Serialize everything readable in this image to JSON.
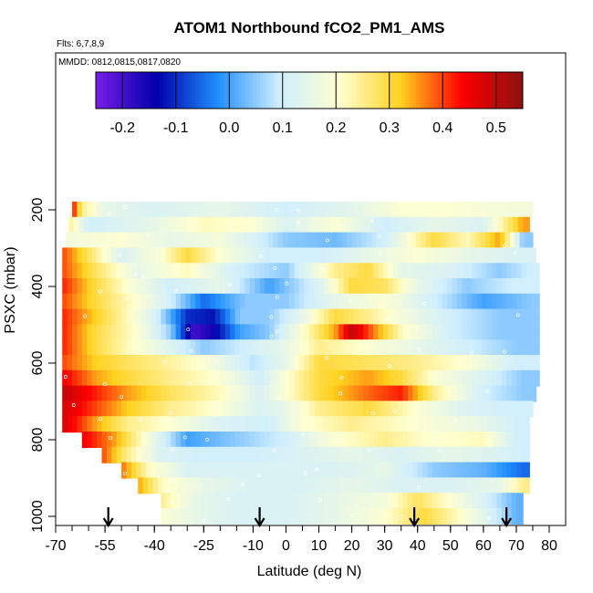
{
  "chart_data": {
    "type": "heatmap",
    "title": "ATOM1 Northbound fCO2_PM1_AMS",
    "subtitle_flights": "Flts: 6,7,8,9",
    "subtitle_dates": "MMDD: 0812,0815,0817,0820",
    "xlabel": "Latitude (deg N)",
    "ylabel": "PSXC (mbar)",
    "xlim": [
      -70,
      85
    ],
    "ylim": [
      1000,
      0
    ],
    "x_ticks": [
      "-70",
      "-55",
      "-40",
      "-25",
      "-10",
      "0",
      "10",
      "20",
      "30",
      "40",
      "50",
      "60",
      "70",
      "80"
    ],
    "x_tick_values": [
      -70,
      -55,
      -40,
      -25,
      -10,
      0,
      10,
      20,
      30,
      40,
      50,
      60,
      70,
      80
    ],
    "y_ticks": [
      "200",
      "400",
      "600",
      "800",
      "1000"
    ],
    "y_tick_values": [
      200,
      400,
      600,
      800,
      1000
    ],
    "colorbar": {
      "range": [
        -0.25,
        0.55
      ],
      "ticks": [
        "-0.2",
        "-0.1",
        "0.0",
        "0.1",
        "0.2",
        "0.3",
        "0.4",
        "0.5"
      ],
      "tick_values": [
        -0.2,
        -0.1,
        0.0,
        0.1,
        0.2,
        0.3,
        0.4,
        0.5
      ],
      "colors": [
        "#7a1de8",
        "#0000aa",
        "#1f8fff",
        "#cfeeff",
        "#ffffd0",
        "#ffd21e",
        "#ff0000",
        "#8b1010"
      ]
    },
    "arrows_latitude": [
      -54,
      -8,
      39,
      67
    ],
    "pressure_levels": [
      200,
      240,
      280,
      320,
      360,
      400,
      440,
      480,
      520,
      560,
      600,
      640,
      680,
      720,
      760,
      800,
      840,
      880,
      920,
      960,
      1000
    ],
    "bands": [
      {
        "p": 200,
        "from": -65,
        "to": 75,
        "values": [
          [
            -65,
            0.45
          ],
          [
            -62,
            0.25
          ],
          [
            -55,
            0.15
          ],
          [
            -40,
            0.12
          ],
          [
            -20,
            0.15
          ],
          [
            0,
            0.1
          ],
          [
            20,
            0.14
          ],
          [
            35,
            0.2
          ],
          [
            50,
            0.2
          ],
          [
            70,
            0.18
          ]
        ]
      },
      {
        "p": 240,
        "from": -66,
        "to": 74,
        "values": [
          [
            -66,
            0.25
          ],
          [
            -60,
            0.1
          ],
          [
            -40,
            0.15
          ],
          [
            -25,
            0.22
          ],
          [
            -10,
            0.2
          ],
          [
            0,
            0.12
          ],
          [
            15,
            0.2
          ],
          [
            30,
            0.1
          ],
          [
            45,
            0.15
          ],
          [
            60,
            0.12
          ],
          [
            72,
            0.35
          ]
        ]
      },
      {
        "p": 280,
        "from": -67,
        "to": 75,
        "values": [
          [
            -67,
            0.18
          ],
          [
            -50,
            0.2
          ],
          [
            -35,
            0.15
          ],
          [
            -20,
            0.18
          ],
          [
            0,
            0.05
          ],
          [
            15,
            0.03
          ],
          [
            30,
            0.1
          ],
          [
            45,
            0.3
          ],
          [
            55,
            0.22
          ],
          [
            65,
            0.35
          ],
          [
            72,
            0.05
          ]
        ]
      },
      {
        "p": 320,
        "from": -68,
        "to": 76,
        "values": [
          [
            -68,
            0.4
          ],
          [
            -58,
            0.25
          ],
          [
            -50,
            0.12
          ],
          [
            -38,
            0.2
          ],
          [
            -30,
            0.3
          ],
          [
            -20,
            0.2
          ],
          [
            -5,
            0.1
          ],
          [
            10,
            0.1
          ],
          [
            25,
            0.15
          ],
          [
            40,
            0.2
          ],
          [
            55,
            0.15
          ],
          [
            70,
            0.12
          ]
        ]
      },
      {
        "p": 360,
        "from": -68,
        "to": 77,
        "values": [
          [
            -68,
            0.4
          ],
          [
            -58,
            0.28
          ],
          [
            -45,
            0.15
          ],
          [
            -30,
            0.22
          ],
          [
            -15,
            0.1
          ],
          [
            0,
            0.05
          ],
          [
            15,
            0.25
          ],
          [
            25,
            0.3
          ],
          [
            35,
            0.15
          ],
          [
            50,
            0.12
          ],
          [
            65,
            0.05
          ],
          [
            75,
            0.1
          ]
        ]
      },
      {
        "p": 400,
        "from": -68,
        "to": 77,
        "values": [
          [
            -68,
            0.42
          ],
          [
            -58,
            0.3
          ],
          [
            -48,
            0.2
          ],
          [
            -35,
            0.1
          ],
          [
            -20,
            0.15
          ],
          [
            -5,
            0.0
          ],
          [
            10,
            0.12
          ],
          [
            20,
            0.3
          ],
          [
            30,
            0.28
          ],
          [
            40,
            0.15
          ],
          [
            55,
            0.05
          ],
          [
            70,
            0.1
          ]
        ]
      },
      {
        "p": 440,
        "from": -68,
        "to": 77,
        "values": [
          [
            -68,
            0.4
          ],
          [
            -58,
            0.3
          ],
          [
            -45,
            0.2
          ],
          [
            -35,
            0.1
          ],
          [
            -25,
            -0.05
          ],
          [
            -12,
            0.05
          ],
          [
            0,
            0.05
          ],
          [
            15,
            0.15
          ],
          [
            30,
            0.2
          ],
          [
            45,
            0.1
          ],
          [
            60,
            0.0
          ],
          [
            75,
            0.05
          ]
        ]
      },
      {
        "p": 480,
        "from": -68,
        "to": 77,
        "values": [
          [
            -68,
            0.42
          ],
          [
            -58,
            0.32
          ],
          [
            -48,
            0.22
          ],
          [
            -40,
            0.12
          ],
          [
            -30,
            -0.1
          ],
          [
            -22,
            -0.12
          ],
          [
            -14,
            0.05
          ],
          [
            -5,
            0.05
          ],
          [
            5,
            0.15
          ],
          [
            15,
            0.3
          ],
          [
            25,
            0.25
          ],
          [
            35,
            0.18
          ],
          [
            50,
            0.1
          ],
          [
            65,
            0.05
          ]
        ]
      },
      {
        "p": 520,
        "from": -68,
        "to": 77,
        "values": [
          [
            -68,
            0.42
          ],
          [
            -58,
            0.3
          ],
          [
            -45,
            0.2
          ],
          [
            -35,
            0.05
          ],
          [
            -28,
            -0.2
          ],
          [
            -22,
            -0.15
          ],
          [
            -14,
            0.0
          ],
          [
            -5,
            0.05
          ],
          [
            5,
            0.2
          ],
          [
            15,
            0.35
          ],
          [
            20,
            0.5
          ],
          [
            25,
            0.4
          ],
          [
            35,
            0.22
          ],
          [
            50,
            0.1
          ],
          [
            65,
            0.05
          ]
        ]
      },
      {
        "p": 560,
        "from": -68,
        "to": 77,
        "values": [
          [
            -68,
            0.42
          ],
          [
            -58,
            0.3
          ],
          [
            -48,
            0.22
          ],
          [
            -38,
            0.15
          ],
          [
            -25,
            0.05
          ],
          [
            -12,
            0.1
          ],
          [
            0,
            0.15
          ],
          [
            10,
            0.25
          ],
          [
            25,
            0.2
          ],
          [
            40,
            0.15
          ],
          [
            55,
            0.1
          ],
          [
            70,
            0.05
          ]
        ]
      },
      {
        "p": 600,
        "from": -68,
        "to": 77,
        "values": [
          [
            -68,
            0.4
          ],
          [
            -58,
            0.32
          ],
          [
            -48,
            0.28
          ],
          [
            -38,
            0.25
          ],
          [
            -25,
            0.2
          ],
          [
            -10,
            0.08
          ],
          [
            0,
            0.15
          ],
          [
            10,
            0.3
          ],
          [
            25,
            0.28
          ],
          [
            40,
            0.25
          ],
          [
            55,
            0.2
          ],
          [
            70,
            0.1
          ]
        ]
      },
      {
        "p": 640,
        "from": -68,
        "to": 77,
        "values": [
          [
            -68,
            0.45
          ],
          [
            -58,
            0.35
          ],
          [
            -48,
            0.3
          ],
          [
            -35,
            0.25
          ],
          [
            -20,
            0.2
          ],
          [
            -8,
            0.1
          ],
          [
            0,
            0.2
          ],
          [
            10,
            0.3
          ],
          [
            25,
            0.35
          ],
          [
            35,
            0.3
          ],
          [
            45,
            0.2
          ],
          [
            60,
            0.12
          ],
          [
            72,
            0.05
          ]
        ]
      },
      {
        "p": 680,
        "from": -68,
        "to": 76,
        "values": [
          [
            -68,
            0.5
          ],
          [
            -58,
            0.42
          ],
          [
            -48,
            0.35
          ],
          [
            -35,
            0.28
          ],
          [
            -20,
            0.22
          ],
          [
            -8,
            0.12
          ],
          [
            0,
            0.2
          ],
          [
            10,
            0.3
          ],
          [
            25,
            0.38
          ],
          [
            35,
            0.42
          ],
          [
            45,
            0.25
          ],
          [
            60,
            0.1
          ],
          [
            72,
            0.05
          ]
        ]
      },
      {
        "p": 720,
        "from": -68,
        "to": 75,
        "values": [
          [
            -68,
            0.48
          ],
          [
            -58,
            0.4
          ],
          [
            -48,
            0.32
          ],
          [
            -35,
            0.25
          ],
          [
            -20,
            0.2
          ],
          [
            -8,
            0.12
          ],
          [
            0,
            0.15
          ],
          [
            10,
            0.25
          ],
          [
            25,
            0.3
          ],
          [
            40,
            0.2
          ],
          [
            55,
            0.12
          ],
          [
            70,
            0.1
          ]
        ]
      },
      {
        "p": 760,
        "from": -68,
        "to": 74,
        "values": [
          [
            -68,
            0.48
          ],
          [
            -58,
            0.35
          ],
          [
            -48,
            0.25
          ],
          [
            -35,
            0.2
          ],
          [
            -20,
            0.12
          ],
          [
            -5,
            0.1
          ],
          [
            5,
            0.2
          ],
          [
            20,
            0.25
          ],
          [
            40,
            0.2
          ],
          [
            60,
            0.15
          ],
          [
            70,
            0.1
          ]
        ]
      },
      {
        "p": 800,
        "from": -62,
        "to": 74,
        "values": [
          [
            -62,
            0.45
          ],
          [
            -52,
            0.35
          ],
          [
            -40,
            0.15
          ],
          [
            -30,
            0.0
          ],
          [
            -15,
            0.05
          ],
          [
            0,
            0.1
          ],
          [
            15,
            0.2
          ],
          [
            30,
            0.25
          ],
          [
            45,
            0.2
          ],
          [
            60,
            0.22
          ],
          [
            70,
            0.1
          ]
        ]
      },
      {
        "p": 840,
        "from": -56,
        "to": 74,
        "values": [
          [
            -56,
            0.4
          ],
          [
            -48,
            0.25
          ],
          [
            -38,
            0.12
          ],
          [
            -25,
            0.1
          ],
          [
            -10,
            0.1
          ],
          [
            5,
            0.12
          ],
          [
            20,
            0.15
          ],
          [
            35,
            0.12
          ],
          [
            50,
            0.15
          ],
          [
            65,
            0.12
          ],
          [
            72,
            0.1
          ]
        ]
      },
      {
        "p": 880,
        "from": -50,
        "to": 74,
        "values": [
          [
            -50,
            0.38
          ],
          [
            -42,
            0.22
          ],
          [
            -30,
            0.12
          ],
          [
            -15,
            0.12
          ],
          [
            0,
            0.12
          ],
          [
            15,
            0.12
          ],
          [
            30,
            0.15
          ],
          [
            45,
            0.05
          ],
          [
            60,
            0.02
          ],
          [
            72,
            -0.05
          ]
        ]
      },
      {
        "p": 920,
        "from": -45,
        "to": 74,
        "values": [
          [
            -45,
            0.35
          ],
          [
            -38,
            0.22
          ],
          [
            -25,
            0.15
          ],
          [
            -10,
            0.12
          ],
          [
            5,
            0.12
          ],
          [
            20,
            0.15
          ],
          [
            35,
            0.12
          ],
          [
            50,
            0.12
          ],
          [
            65,
            0.15
          ],
          [
            72,
            0.25
          ]
        ]
      },
      {
        "p": 960,
        "from": -38,
        "to": 72,
        "values": [
          [
            -38,
            0.25
          ],
          [
            -28,
            0.15
          ],
          [
            -15,
            0.12
          ],
          [
            0,
            0.12
          ],
          [
            15,
            0.15
          ],
          [
            30,
            0.18
          ],
          [
            40,
            0.28
          ],
          [
            50,
            0.2
          ],
          [
            60,
            0.12
          ],
          [
            70,
            0.02
          ]
        ]
      },
      {
        "p": 1000,
        "from": -38,
        "to": 72,
        "values": [
          [
            -38,
            0.2
          ],
          [
            -28,
            0.15
          ],
          [
            -15,
            0.12
          ],
          [
            0,
            0.12
          ],
          [
            15,
            0.15
          ],
          [
            30,
            0.2
          ],
          [
            42,
            0.3
          ],
          [
            52,
            0.22
          ],
          [
            62,
            0.12
          ],
          [
            70,
            0.02
          ]
        ]
      }
    ]
  }
}
